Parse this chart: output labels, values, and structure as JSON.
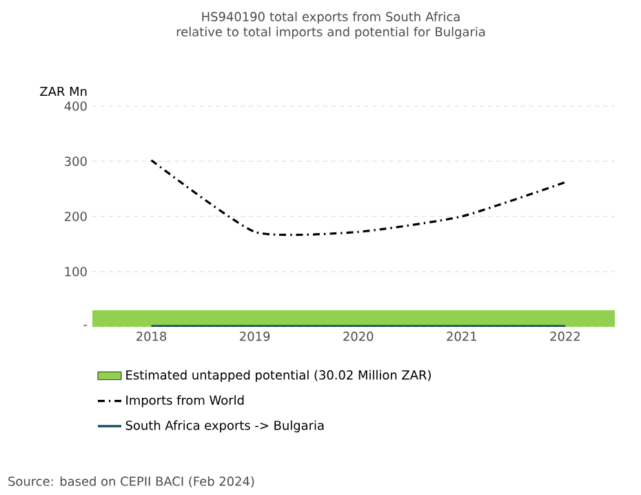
{
  "chart_data": {
    "type": "line",
    "title": "HS940190 total exports from South Africa relative to total imports and potential for Bulgaria",
    "ylabel": "ZAR Mn",
    "categories": [
      "2018",
      "2019",
      "2020",
      "2021",
      "2022"
    ],
    "series": [
      {
        "name": "Imports from World",
        "color": "#000000",
        "values": [
          302,
          172,
          172,
          200,
          262
        ],
        "line_style": "dashed"
      },
      {
        "name": "South Africa exports -> Bulgaria",
        "color": "#0d4a57",
        "values": [
          1,
          1,
          1,
          1,
          1
        ],
        "line_style": "solid"
      }
    ],
    "bands": [
      {
        "axis": "y",
        "from": 0,
        "to": 30.02,
        "label": "Estimated untapped potential (30.02 Million ZAR)",
        "color": "#92d050"
      }
    ],
    "ylim": [
      0,
      400
    ],
    "yticks": [
      {
        "value": 0,
        "label": "-"
      },
      100,
      200,
      300,
      400
    ],
    "grid": "y",
    "legend": "bottom",
    "annotations": [
      "Source: based on CEPII BACI (Feb 2024)"
    ]
  }
}
